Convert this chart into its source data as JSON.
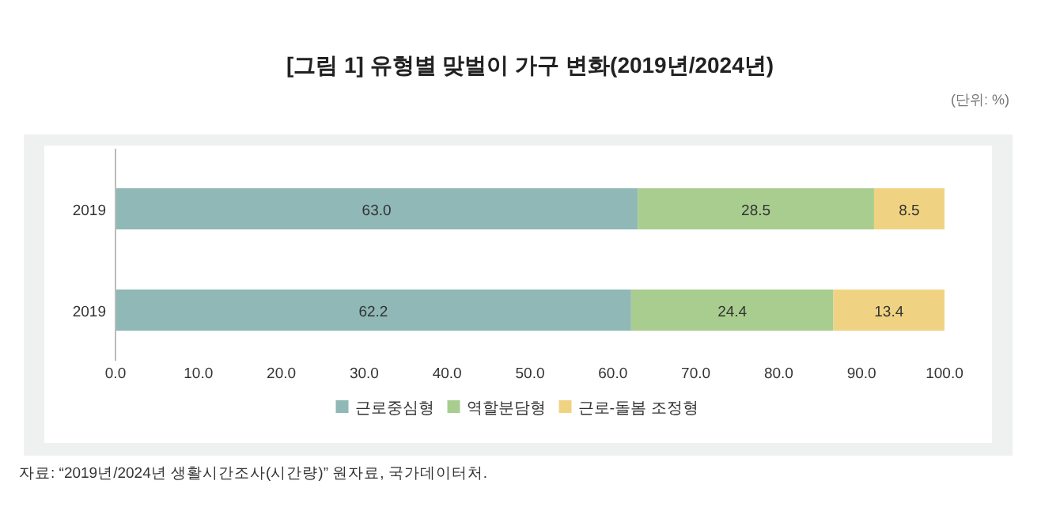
{
  "chart_data": {
    "type": "bar",
    "orientation": "horizontal",
    "stacked": true,
    "title": "[그림 1] 유형별 맞벌이 가구 변화(2019년/2024년)",
    "subtitle": "(단위: %)",
    "annotations": [
      "자료: “2019년/2024년 생활시간조사(시간량)” 원자료, 국가데이터처."
    ],
    "categories": [
      "2019",
      "2019"
    ],
    "series": [
      {
        "name": "근로중심형",
        "color": "#8fb8b7",
        "values": [
          63.0,
          62.2
        ],
        "value_labels": [
          "63.0",
          "62.2"
        ]
      },
      {
        "name": "역할분담형",
        "color": "#a8cd8f",
        "values": [
          28.5,
          24.4
        ],
        "value_labels": [
          "28.5",
          "24.4"
        ]
      },
      {
        "name": "근로-돌봄 조정형",
        "color": "#f0d382",
        "values": [
          8.5,
          13.4
        ],
        "value_labels": [
          "8.5",
          "13.4"
        ]
      }
    ],
    "xlim": [
      0,
      100
    ],
    "xticks": [
      {
        "value": 0,
        "label": "0.0"
      },
      {
        "value": 10,
        "label": "10.0"
      },
      {
        "value": 20,
        "label": "20.0"
      },
      {
        "value": 30,
        "label": "30.0"
      },
      {
        "value": 40,
        "label": "40.0"
      },
      {
        "value": 50,
        "label": "50.0"
      },
      {
        "value": 60,
        "label": "60.0"
      },
      {
        "value": 70,
        "label": "70.0"
      },
      {
        "value": 80,
        "label": "80.0"
      },
      {
        "value": 90,
        "label": "90.0"
      },
      {
        "value": 100,
        "label": "100.0"
      }
    ],
    "grid": false,
    "legend": "bottom"
  }
}
